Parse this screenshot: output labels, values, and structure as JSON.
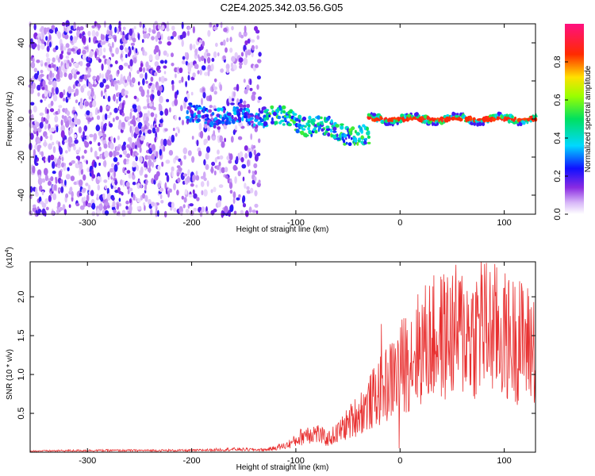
{
  "title": "C2E4.2025.342.03.56.G05",
  "colors": {
    "snr_line": "#e83030",
    "axis": "#000000"
  },
  "chart_data": [
    {
      "type": "heatmap",
      "xlabel": "Height of straight line (km)",
      "ylabel": "Frequency (Hz)",
      "xlim": [
        -355,
        130
      ],
      "ylim": [
        -50,
        50
      ],
      "xticks": [
        -300,
        -200,
        -100,
        0,
        100
      ],
      "yticks": [
        -40,
        -20,
        0,
        20,
        40
      ],
      "colorbar": {
        "label": "Normalized spectral amplitude",
        "range": [
          0.0,
          1.0
        ],
        "ticks": [
          "0.0",
          "0.2",
          "0.4",
          "0.6",
          "0.8"
        ],
        "colormap": "rainbow (white-violet-blue-cyan-green-yellow-red-magenta)"
      },
      "regions": [
        {
          "x": [
            -355,
            -135
          ],
          "freq_spread": 50,
          "amplitude": 0.1,
          "note": "broadband scattered noise"
        },
        {
          "x": [
            -205,
            -130
          ],
          "freq_center": 2,
          "freq_spread": 6,
          "amplitude": 0.3
        },
        {
          "x": [
            -130,
            -30
          ],
          "freq_center": [
            2,
            -10
          ],
          "freq_spread": 6,
          "amplitude": 0.45
        },
        {
          "x": [
            -30,
            130
          ],
          "freq_center": 0,
          "freq_spread": 2,
          "amplitude": 0.85
        }
      ]
    },
    {
      "type": "line",
      "xlabel": "Height of straight line (km)",
      "ylabel": "SNR (10 * v/v)",
      "yscale_note": "(x10",
      "yscale_exp": "4",
      "xlim": [
        -355,
        130
      ],
      "ylim": [
        0,
        2.45
      ],
      "xticks": [
        -300,
        -200,
        -100,
        0,
        100
      ],
      "yticks": [
        "0.5",
        "1.0",
        "1.5",
        "2.0"
      ],
      "envelope": {
        "x": [
          -355,
          -300,
          -250,
          -200,
          -160,
          -130,
          -110,
          -100,
          -90,
          -80,
          -70,
          -60,
          -50,
          -40,
          -30,
          -20,
          -10,
          0,
          10,
          20,
          30,
          40,
          50,
          60,
          70,
          80,
          90,
          100,
          110,
          120,
          130
        ],
        "y": [
          0.02,
          0.03,
          0.03,
          0.03,
          0.05,
          0.04,
          0.1,
          0.18,
          0.3,
          0.3,
          0.2,
          0.3,
          0.45,
          0.6,
          0.75,
          0.95,
          1.1,
          1.3,
          1.5,
          1.65,
          1.75,
          1.8,
          1.85,
          1.9,
          1.85,
          1.95,
          1.9,
          1.8,
          1.75,
          1.7,
          1.65
        ]
      },
      "spikes": [
        {
          "x": -18,
          "y": 1.65
        },
        {
          "x": -1,
          "y": 0.05
        },
        {
          "x": 78,
          "y": 2.45
        },
        {
          "x": 58,
          "y": 2.2
        },
        {
          "x": 115,
          "y": 2.2
        }
      ]
    }
  ]
}
